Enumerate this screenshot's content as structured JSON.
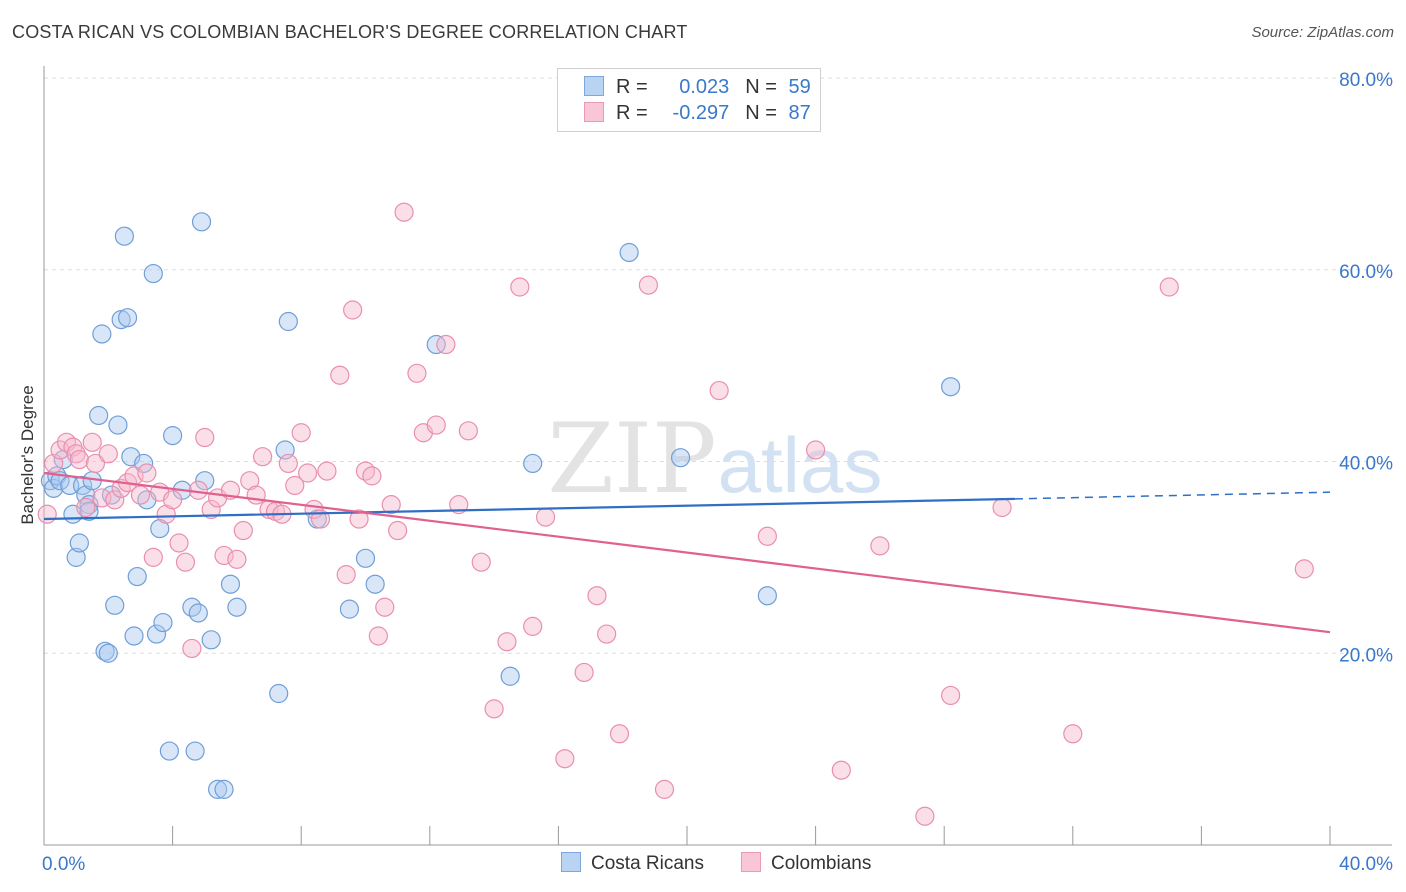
{
  "header": {
    "title": "COSTA RICAN VS COLOMBIAN BACHELOR'S DEGREE CORRELATION CHART",
    "source": "Source: ZipAtlas.com"
  },
  "legend": {
    "series1": {
      "r_label": "R =",
      "r_value": "0.023",
      "n_label": "N =",
      "n_value": "59"
    },
    "series2": {
      "r_label": "R =",
      "r_value": "-0.297",
      "n_label": "N =",
      "n_value": "87"
    }
  },
  "bottom_legend": {
    "series1": "Costa Ricans",
    "series2": "Colombians"
  },
  "watermark": {
    "zip": "ZIP",
    "atlas": "atlas"
  },
  "colors": {
    "blue_fill": "#a9c8ef",
    "blue_stroke": "#6f9fd8",
    "blue_line": "#2f6fc4",
    "pink_fill": "#f6b9cc",
    "pink_stroke": "#e98fae",
    "pink_line": "#e0608f",
    "tick_label": "#3a78c9",
    "grid": "#dddddd"
  },
  "chart_data": {
    "type": "scatter",
    "xlabel": "",
    "ylabel": "Bachelor's Degree",
    "xlim": [
      0,
      40
    ],
    "ylim": [
      0,
      80
    ],
    "x_tick_labels": [
      {
        "value": 0,
        "label": "0.0%"
      },
      {
        "value": 40,
        "label": "40.0%"
      }
    ],
    "y_tick_labels": [
      {
        "value": 20,
        "label": "20.0%"
      },
      {
        "value": 40,
        "label": "40.0%"
      },
      {
        "value": 60,
        "label": "60.0%"
      },
      {
        "value": 80,
        "label": "80.0%"
      }
    ],
    "grid": true,
    "legend_position": "top-center",
    "series": [
      {
        "name": "Costa Ricans",
        "color": "#a9c8ef",
        "trend": {
          "x": [
            0,
            30.2
          ],
          "y": [
            34.0,
            36.1
          ],
          "dashed_to": [
            40.0,
            36.8
          ]
        },
        "points": [
          [
            0.2,
            38.0
          ],
          [
            0.3,
            37.2
          ],
          [
            0.4,
            38.5
          ],
          [
            0.5,
            38.0
          ],
          [
            0.6,
            40.2
          ],
          [
            0.8,
            37.5
          ],
          [
            0.9,
            34.5
          ],
          [
            1.0,
            30.0
          ],
          [
            1.1,
            31.5
          ],
          [
            1.2,
            37.5
          ],
          [
            1.3,
            36.5
          ],
          [
            1.4,
            35.5
          ],
          [
            1.4,
            34.8
          ],
          [
            1.5,
            38.0
          ],
          [
            1.7,
            44.8
          ],
          [
            1.8,
            53.3
          ],
          [
            1.9,
            20.2
          ],
          [
            2.0,
            20.0
          ],
          [
            2.1,
            36.5
          ],
          [
            2.2,
            25.0
          ],
          [
            2.3,
            43.8
          ],
          [
            2.4,
            54.8
          ],
          [
            2.5,
            63.5
          ],
          [
            2.6,
            55.0
          ],
          [
            2.7,
            40.5
          ],
          [
            2.8,
            21.8
          ],
          [
            2.9,
            28.0
          ],
          [
            3.1,
            39.8
          ],
          [
            3.2,
            36.0
          ],
          [
            3.4,
            59.6
          ],
          [
            3.5,
            22.0
          ],
          [
            3.6,
            33.0
          ],
          [
            3.7,
            23.2
          ],
          [
            3.9,
            9.8
          ],
          [
            4.0,
            42.7
          ],
          [
            4.3,
            37.0
          ],
          [
            4.6,
            24.8
          ],
          [
            4.7,
            9.8
          ],
          [
            4.8,
            24.2
          ],
          [
            4.9,
            65.0
          ],
          [
            5.0,
            38.0
          ],
          [
            5.2,
            21.4
          ],
          [
            5.4,
            5.8
          ],
          [
            5.6,
            5.8
          ],
          [
            5.8,
            27.2
          ],
          [
            6.0,
            24.8
          ],
          [
            7.3,
            15.8
          ],
          [
            7.5,
            41.2
          ],
          [
            7.6,
            54.6
          ],
          [
            8.5,
            34.0
          ],
          [
            9.5,
            24.6
          ],
          [
            10.0,
            29.9
          ],
          [
            10.3,
            27.2
          ],
          [
            12.2,
            52.2
          ],
          [
            14.5,
            17.6
          ],
          [
            15.2,
            39.8
          ],
          [
            18.2,
            61.8
          ],
          [
            19.8,
            40.4
          ],
          [
            22.5,
            26.0
          ],
          [
            28.2,
            47.8
          ]
        ]
      },
      {
        "name": "Colombians",
        "color": "#f6b9cc",
        "trend": {
          "x": [
            0,
            40
          ],
          "y": [
            38.8,
            22.2
          ]
        },
        "points": [
          [
            0.1,
            34.5
          ],
          [
            0.3,
            39.8
          ],
          [
            0.5,
            41.2
          ],
          [
            0.7,
            42.0
          ],
          [
            0.9,
            41.5
          ],
          [
            1.0,
            40.8
          ],
          [
            1.1,
            40.2
          ],
          [
            1.3,
            35.2
          ],
          [
            1.5,
            42.0
          ],
          [
            1.6,
            39.8
          ],
          [
            1.8,
            36.2
          ],
          [
            2.0,
            40.8
          ],
          [
            2.2,
            36.0
          ],
          [
            2.4,
            37.2
          ],
          [
            2.6,
            37.8
          ],
          [
            2.8,
            38.5
          ],
          [
            3.0,
            36.5
          ],
          [
            3.2,
            38.8
          ],
          [
            3.4,
            30.0
          ],
          [
            3.6,
            36.8
          ],
          [
            3.8,
            34.5
          ],
          [
            4.0,
            36.0
          ],
          [
            4.2,
            31.5
          ],
          [
            4.4,
            29.5
          ],
          [
            4.6,
            20.5
          ],
          [
            4.8,
            37.0
          ],
          [
            5.0,
            42.5
          ],
          [
            5.2,
            35.0
          ],
          [
            5.4,
            36.2
          ],
          [
            5.6,
            30.2
          ],
          [
            5.8,
            37.0
          ],
          [
            6.0,
            29.8
          ],
          [
            6.2,
            32.8
          ],
          [
            6.4,
            38.0
          ],
          [
            6.6,
            36.5
          ],
          [
            6.8,
            40.5
          ],
          [
            7.0,
            35.0
          ],
          [
            7.2,
            34.8
          ],
          [
            7.4,
            34.5
          ],
          [
            7.6,
            39.8
          ],
          [
            7.8,
            37.5
          ],
          [
            8.0,
            43.0
          ],
          [
            8.2,
            38.8
          ],
          [
            8.4,
            35.0
          ],
          [
            8.6,
            34.0
          ],
          [
            8.8,
            39.0
          ],
          [
            9.2,
            49.0
          ],
          [
            9.4,
            28.2
          ],
          [
            9.6,
            55.8
          ],
          [
            9.8,
            34.0
          ],
          [
            10.0,
            39.0
          ],
          [
            10.2,
            38.5
          ],
          [
            10.4,
            21.8
          ],
          [
            10.6,
            24.8
          ],
          [
            10.8,
            35.5
          ],
          [
            11.0,
            32.8
          ],
          [
            11.2,
            66.0
          ],
          [
            11.6,
            49.2
          ],
          [
            11.8,
            43.0
          ],
          [
            12.2,
            43.8
          ],
          [
            12.5,
            52.2
          ],
          [
            12.9,
            35.5
          ],
          [
            13.2,
            43.2
          ],
          [
            13.6,
            29.5
          ],
          [
            14.0,
            14.2
          ],
          [
            14.4,
            21.2
          ],
          [
            14.8,
            58.2
          ],
          [
            15.2,
            22.8
          ],
          [
            15.6,
            34.2
          ],
          [
            16.2,
            9.0
          ],
          [
            16.8,
            18.0
          ],
          [
            17.2,
            26.0
          ],
          [
            17.5,
            22.0
          ],
          [
            17.9,
            11.6
          ],
          [
            18.8,
            58.4
          ],
          [
            19.3,
            5.8
          ],
          [
            21.0,
            47.4
          ],
          [
            22.5,
            32.2
          ],
          [
            24.0,
            41.2
          ],
          [
            24.8,
            7.8
          ],
          [
            26.0,
            31.2
          ],
          [
            27.4,
            3.0
          ],
          [
            28.2,
            15.6
          ],
          [
            29.8,
            35.2
          ],
          [
            32.0,
            11.6
          ],
          [
            35.0,
            58.2
          ],
          [
            39.2,
            28.8
          ]
        ]
      }
    ]
  }
}
